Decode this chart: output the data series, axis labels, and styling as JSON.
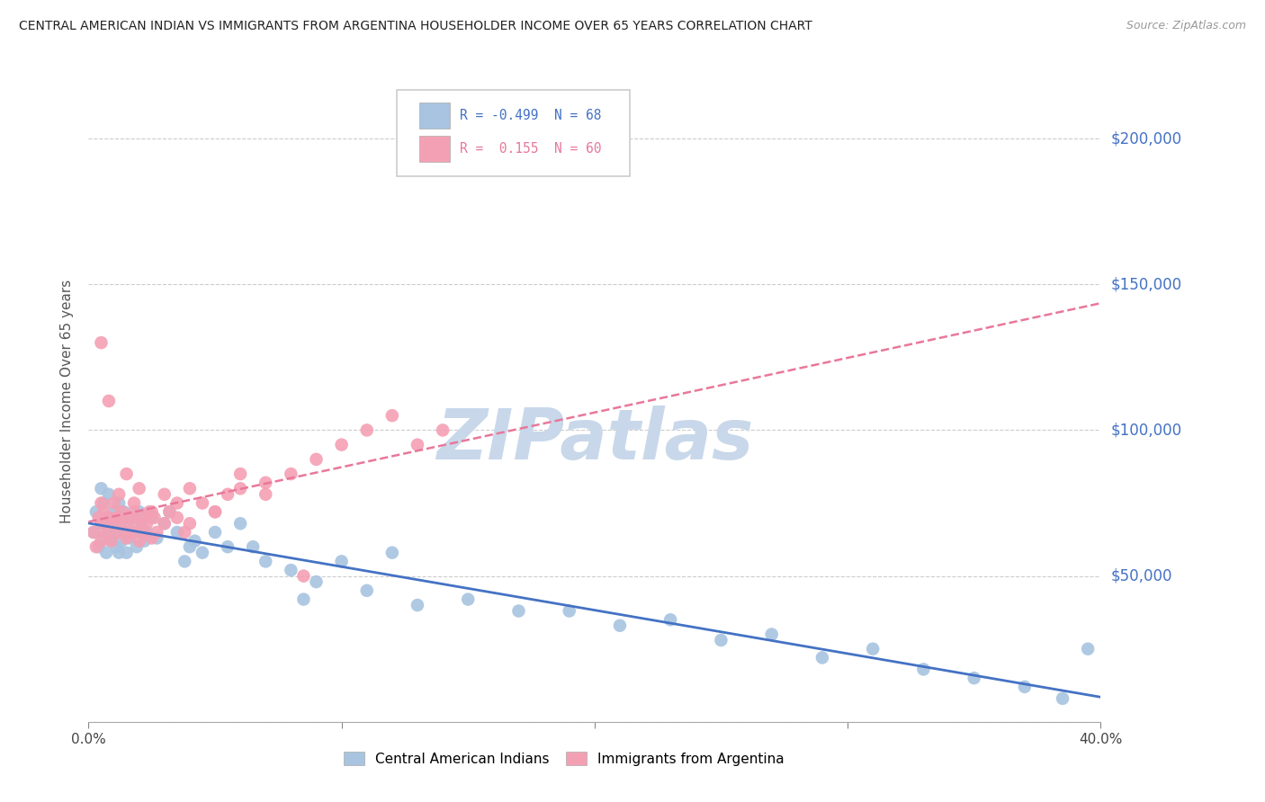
{
  "title": "CENTRAL AMERICAN INDIAN VS IMMIGRANTS FROM ARGENTINA HOUSEHOLDER INCOME OVER 65 YEARS CORRELATION CHART",
  "source": "Source: ZipAtlas.com",
  "ylabel": "Householder Income Over 65 years",
  "xlim": [
    0.0,
    40.0
  ],
  "ylim": [
    0,
    220000
  ],
  "yticks": [
    0,
    50000,
    100000,
    150000,
    200000
  ],
  "ytick_labels": [
    "",
    "$50,000",
    "$100,000",
    "$150,000",
    "$200,000"
  ],
  "xtick_positions": [
    0.0,
    10.0,
    20.0,
    30.0,
    40.0
  ],
  "xtick_labels": [
    "0.0%",
    "",
    "",
    "",
    "40.0%"
  ],
  "r1": -0.499,
  "n1": 68,
  "r2": 0.155,
  "n2": 60,
  "series1_color": "#a8c4e0",
  "series2_color": "#f4a0b4",
  "line1_color": "#4472c4",
  "line2_color": "#e8789a",
  "line2_style": "solid",
  "background_color": "#ffffff",
  "title_color": "#222222",
  "source_color": "#999999",
  "axis_label_color": "#4472c4",
  "ylabel_color": "#555555",
  "watermark": "ZIPatlas",
  "watermark_color": "#c8d8ea",
  "legend_label1": "Central American Indians",
  "legend_label2": "Immigrants from Argentina",
  "blue_scatter_x": [
    0.2,
    0.3,
    0.4,
    0.5,
    0.5,
    0.6,
    0.6,
    0.7,
    0.7,
    0.8,
    0.8,
    0.9,
    0.9,
    1.0,
    1.0,
    1.1,
    1.1,
    1.2,
    1.2,
    1.3,
    1.3,
    1.4,
    1.4,
    1.5,
    1.5,
    1.6,
    1.7,
    1.8,
    1.9,
    2.0,
    2.1,
    2.2,
    2.3,
    2.5,
    2.7,
    3.0,
    3.2,
    3.5,
    3.8,
    4.0,
    4.5,
    5.0,
    5.5,
    6.0,
    7.0,
    8.0,
    9.0,
    10.0,
    11.0,
    13.0,
    15.0,
    17.0,
    19.0,
    21.0,
    23.0,
    25.0,
    27.0,
    29.0,
    31.0,
    33.0,
    35.0,
    37.0,
    38.5,
    39.5,
    4.2,
    6.5,
    8.5,
    12.0
  ],
  "blue_scatter_y": [
    65000,
    72000,
    60000,
    68000,
    80000,
    63000,
    75000,
    70000,
    58000,
    65000,
    78000,
    62000,
    70000,
    65000,
    72000,
    68000,
    60000,
    75000,
    58000,
    70000,
    62000,
    65000,
    72000,
    68000,
    58000,
    63000,
    70000,
    65000,
    60000,
    72000,
    68000,
    62000,
    65000,
    70000,
    63000,
    68000,
    72000,
    65000,
    55000,
    60000,
    58000,
    65000,
    60000,
    68000,
    55000,
    52000,
    48000,
    55000,
    45000,
    40000,
    42000,
    38000,
    38000,
    33000,
    35000,
    28000,
    30000,
    22000,
    25000,
    18000,
    15000,
    12000,
    8000,
    25000,
    62000,
    60000,
    42000,
    58000
  ],
  "pink_scatter_x": [
    0.2,
    0.3,
    0.4,
    0.5,
    0.5,
    0.6,
    0.6,
    0.7,
    0.8,
    0.9,
    1.0,
    1.0,
    1.1,
    1.2,
    1.3,
    1.4,
    1.5,
    1.6,
    1.7,
    1.8,
    1.9,
    2.0,
    2.1,
    2.2,
    2.3,
    2.4,
    2.5,
    2.6,
    2.7,
    3.0,
    3.2,
    3.5,
    3.8,
    4.0,
    4.5,
    5.0,
    5.5,
    6.0,
    7.0,
    8.0,
    9.0,
    10.0,
    11.0,
    12.0,
    13.0,
    14.0,
    0.5,
    0.8,
    1.2,
    1.5,
    1.8,
    2.0,
    2.5,
    3.0,
    3.5,
    4.0,
    5.0,
    6.0,
    7.0,
    8.5
  ],
  "pink_scatter_y": [
    65000,
    60000,
    70000,
    75000,
    62000,
    68000,
    72000,
    65000,
    70000,
    62000,
    68000,
    75000,
    70000,
    65000,
    72000,
    68000,
    63000,
    70000,
    65000,
    72000,
    68000,
    62000,
    70000,
    65000,
    68000,
    72000,
    63000,
    70000,
    65000,
    68000,
    72000,
    70000,
    65000,
    68000,
    75000,
    72000,
    78000,
    80000,
    82000,
    85000,
    90000,
    95000,
    100000,
    105000,
    95000,
    100000,
    130000,
    110000,
    78000,
    85000,
    75000,
    80000,
    72000,
    78000,
    75000,
    80000,
    72000,
    85000,
    78000,
    50000
  ]
}
